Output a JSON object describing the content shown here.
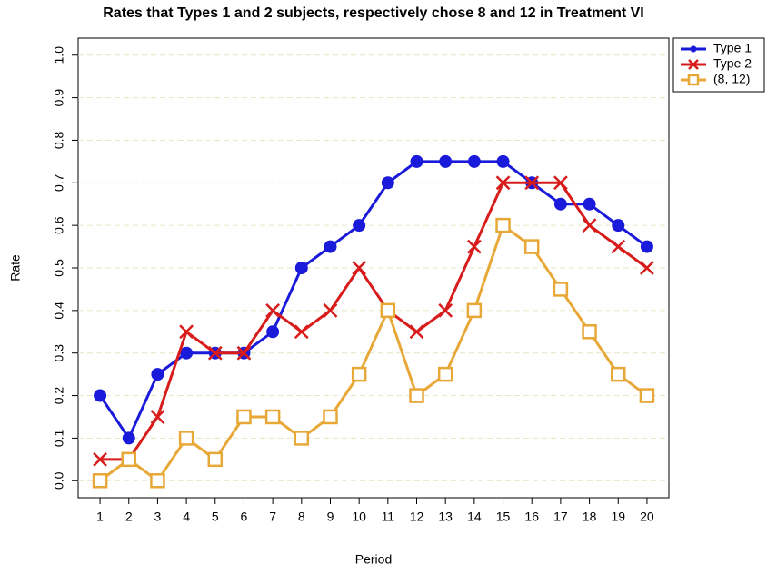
{
  "chart_data": {
    "type": "line",
    "title": "Rates that Types 1 and 2 subjects, respectively chose 8 and 12 in Treatment VI",
    "x_label": "Period",
    "y_label": "Rate",
    "x": [
      1,
      2,
      3,
      4,
      5,
      6,
      7,
      8,
      9,
      10,
      11,
      12,
      13,
      14,
      15,
      16,
      17,
      18,
      19,
      20
    ],
    "series": [
      {
        "name": "Type 1",
        "color": "#1a1adb",
        "marker": "circle",
        "values": [
          0.2,
          0.1,
          0.25,
          0.3,
          0.3,
          0.3,
          0.35,
          0.5,
          0.55,
          0.6,
          0.7,
          0.75,
          0.75,
          0.75,
          0.75,
          0.7,
          0.65,
          0.65,
          0.6,
          0.55
        ]
      },
      {
        "name": "Type 2",
        "color": "#d81b1b",
        "marker": "cross",
        "values": [
          0.05,
          0.05,
          0.15,
          0.35,
          0.3,
          0.3,
          0.4,
          0.35,
          0.4,
          0.5,
          0.4,
          0.35,
          0.4,
          0.55,
          0.7,
          0.7,
          0.7,
          0.6,
          0.55,
          0.5
        ]
      },
      {
        "name": "(8, 12)",
        "color": "#e8a838",
        "marker": "square",
        "values": [
          0,
          0.05,
          0,
          0.1,
          0.05,
          0.15,
          0.15,
          0.1,
          0.15,
          0.25,
          0.4,
          0.2,
          0.25,
          0.4,
          0.6,
          0.55,
          0.45,
          0.35,
          0.25,
          0.2
        ]
      }
    ],
    "xlim": [
      0.24,
      20.76
    ],
    "ylim": [
      -0.04,
      1.04
    ],
    "xticks": [
      1,
      2,
      3,
      4,
      5,
      6,
      7,
      8,
      9,
      10,
      11,
      12,
      13,
      14,
      15,
      16,
      17,
      18,
      19,
      20
    ],
    "yticks": [
      {
        "value": 0,
        "label": "0.0"
      },
      0.1,
      0.2,
      0.3,
      0.4,
      0.5,
      0.6,
      0.7,
      0.8,
      0.9,
      {
        "value": 1,
        "label": "1.0"
      }
    ],
    "grid": true,
    "legend": "outside-top-right"
  }
}
